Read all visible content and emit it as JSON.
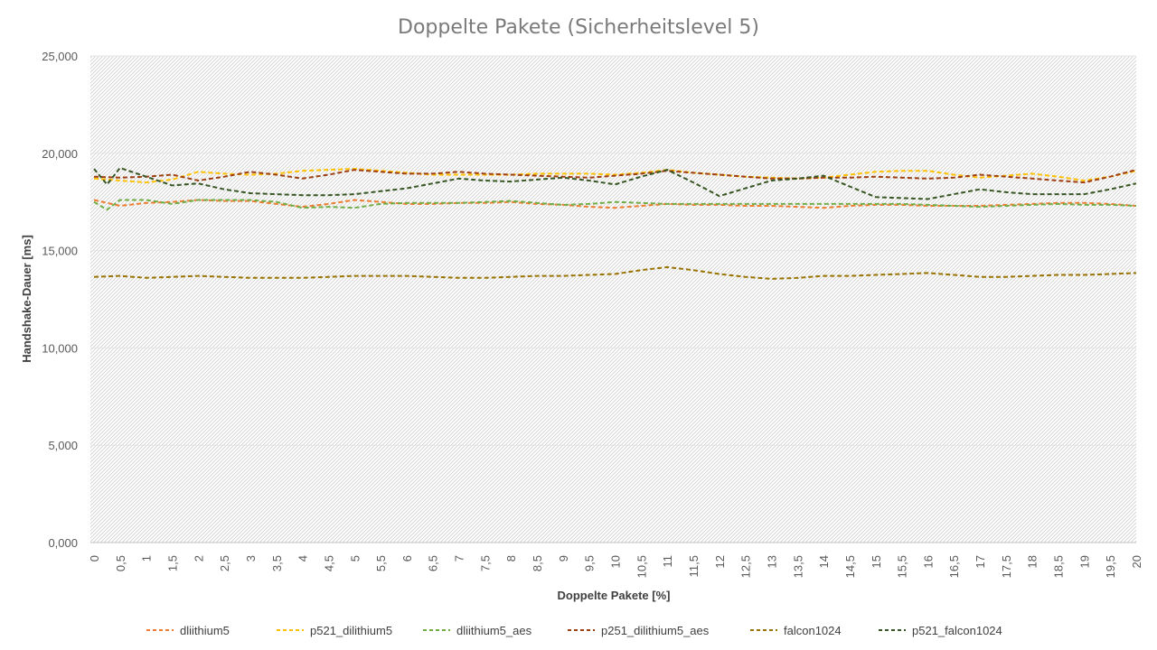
{
  "chart_data": {
    "type": "line",
    "title": "Doppelte Pakete (Sicherheitslevel 5)",
    "xlabel": "Doppelte Pakete [%]",
    "ylabel": "Handshake-Dauer [ms]",
    "ylim": [
      0,
      25000
    ],
    "xlim": [
      0,
      20
    ],
    "yticks": [
      "0,000",
      "5,000",
      "10,000",
      "15,000",
      "20,000",
      "25,000"
    ],
    "categories": [
      "0",
      "0,5",
      "1",
      "1,5",
      "2",
      "2,5",
      "3",
      "3,5",
      "4",
      "4,5",
      "5",
      "5,5",
      "6",
      "6,5",
      "7",
      "7,5",
      "8",
      "8,5",
      "9",
      "9,5",
      "10",
      "10,5",
      "11",
      "11,5",
      "12",
      "12,5",
      "13",
      "13,5",
      "14",
      "14,5",
      "15",
      "15,5",
      "16",
      "16,5",
      "17",
      "17,5",
      "18",
      "18,5",
      "19",
      "19,5",
      "20"
    ],
    "grid": "hatched plot area",
    "legend_position": "bottom",
    "line_style": "dashed",
    "series": [
      {
        "name": "dliithium5",
        "color": "#ed7d31",
        "x": [
          0,
          0.5,
          1,
          1.5,
          2,
          2.5,
          3,
          3.5,
          4,
          4.5,
          5,
          5.5,
          6,
          6.5,
          7,
          7.5,
          8,
          8.5,
          9,
          9.5,
          10,
          10.5,
          11,
          11.5,
          12,
          12.5,
          13,
          13.5,
          14,
          14.5,
          15,
          15.5,
          16,
          16.5,
          17,
          17.5,
          18,
          18.5,
          19,
          19.5,
          20
        ],
        "y": [
          17600,
          17300,
          17450,
          17500,
          17600,
          17550,
          17550,
          17400,
          17250,
          17400,
          17600,
          17500,
          17400,
          17400,
          17450,
          17450,
          17500,
          17400,
          17350,
          17250,
          17200,
          17300,
          17400,
          17350,
          17350,
          17300,
          17300,
          17250,
          17200,
          17300,
          17350,
          17350,
          17300,
          17300,
          17300,
          17350,
          17400,
          17450,
          17450,
          17400,
          17300
        ]
      },
      {
        "name": "p521_dilithium5",
        "color": "#ffc000",
        "x": [
          0,
          0.5,
          1,
          1.5,
          2,
          2.5,
          3,
          3.5,
          4,
          4.5,
          5,
          5.5,
          6,
          6.5,
          7,
          7.5,
          8,
          8.5,
          9,
          9.5,
          10,
          10.5,
          11,
          11.5,
          12,
          12.5,
          13,
          13.5,
          14,
          14.5,
          15,
          15.5,
          16,
          16.5,
          17,
          17.5,
          18,
          18.5,
          19,
          19.5,
          20
        ],
        "y": [
          18700,
          18600,
          18500,
          18650,
          19050,
          18950,
          18900,
          18950,
          19100,
          19150,
          19200,
          19100,
          19000,
          18900,
          18900,
          18900,
          18900,
          18950,
          18950,
          18950,
          18900,
          19000,
          19150,
          19000,
          18900,
          18800,
          18750,
          18700,
          18750,
          18900,
          19050,
          19100,
          19100,
          18900,
          18750,
          18850,
          18950,
          18800,
          18600,
          18800,
          19100
        ]
      },
      {
        "name": "dliithium5_aes",
        "color": "#70ad47",
        "x": [
          0,
          0.25,
          0.5,
          1,
          1.5,
          2,
          2.5,
          3,
          3.5,
          4,
          4.5,
          5,
          5.5,
          6,
          6.5,
          7,
          7.5,
          8,
          8.5,
          9,
          9.5,
          10,
          10.5,
          11,
          11.5,
          12,
          12.5,
          13,
          13.5,
          14,
          14.5,
          15,
          15.5,
          16,
          16.5,
          17,
          17.5,
          18,
          18.5,
          19,
          19.5,
          20
        ],
        "y": [
          17500,
          17100,
          17600,
          17600,
          17400,
          17600,
          17600,
          17600,
          17500,
          17200,
          17250,
          17200,
          17400,
          17450,
          17450,
          17450,
          17500,
          17550,
          17450,
          17350,
          17400,
          17500,
          17450,
          17400,
          17400,
          17400,
          17400,
          17400,
          17400,
          17400,
          17400,
          17400,
          17400,
          17350,
          17300,
          17250,
          17300,
          17350,
          17400,
          17350,
          17350,
          17300
        ]
      },
      {
        "name": "p251_dilithium5_aes",
        "color": "#9e3f13",
        "x": [
          0,
          0.5,
          1,
          1.5,
          2,
          2.5,
          3,
          3.5,
          4,
          4.5,
          5,
          5.5,
          6,
          6.5,
          7,
          7.5,
          8,
          8.5,
          9,
          9.5,
          10,
          10.5,
          11,
          11.5,
          12,
          12.5,
          13,
          13.5,
          14,
          14.5,
          15,
          15.5,
          16,
          16.5,
          17,
          17.5,
          18,
          18.5,
          19,
          19.5,
          20
        ],
        "y": [
          18800,
          18750,
          18800,
          18900,
          18600,
          18800,
          19050,
          18900,
          18700,
          18900,
          19150,
          19050,
          18950,
          18950,
          19050,
          18950,
          18900,
          18850,
          18800,
          18750,
          18850,
          18950,
          19100,
          19000,
          18900,
          18800,
          18700,
          18700,
          18750,
          18750,
          18800,
          18750,
          18700,
          18750,
          18900,
          18800,
          18700,
          18600,
          18500,
          18800,
          19150
        ]
      },
      {
        "name": "falcon1024",
        "color": "#997300",
        "x": [
          0,
          0.5,
          1,
          1.5,
          2,
          2.5,
          3,
          3.5,
          4,
          4.5,
          5,
          5.5,
          6,
          6.5,
          7,
          7.5,
          8,
          8.5,
          9,
          9.5,
          10,
          10.5,
          11,
          11.5,
          12,
          12.5,
          13,
          13.5,
          14,
          14.5,
          15,
          15.5,
          16,
          16.5,
          17,
          17.5,
          18,
          18.5,
          19,
          19.5,
          20
        ],
        "y": [
          13650,
          13700,
          13600,
          13650,
          13700,
          13650,
          13600,
          13600,
          13600,
          13650,
          13700,
          13700,
          13700,
          13650,
          13600,
          13600,
          13650,
          13700,
          13700,
          13750,
          13800,
          14000,
          14150,
          14000,
          13800,
          13650,
          13550,
          13600,
          13700,
          13700,
          13750,
          13800,
          13850,
          13750,
          13650,
          13650,
          13700,
          13750,
          13750,
          13800,
          13850
        ]
      },
      {
        "name": "p521_falcon1024",
        "color": "#375623",
        "x": [
          0,
          0.25,
          0.5,
          1,
          1.5,
          2,
          2.5,
          3,
          3.5,
          4,
          4.5,
          5,
          5.5,
          6,
          6.5,
          7,
          7.5,
          8,
          8.5,
          9,
          9.5,
          10,
          10.5,
          11,
          11.5,
          12,
          12.5,
          13,
          13.5,
          14,
          14.5,
          15,
          15.5,
          16,
          16.5,
          17,
          17.5,
          18,
          18.5,
          19,
          19.5,
          20
        ],
        "y": [
          19200,
          18400,
          19250,
          18800,
          18350,
          18450,
          18150,
          17950,
          17900,
          17850,
          17850,
          17900,
          18050,
          18200,
          18450,
          18700,
          18600,
          18550,
          18650,
          18750,
          18600,
          18400,
          18800,
          19150,
          18500,
          17800,
          18200,
          18600,
          18700,
          18850,
          18300,
          17750,
          17700,
          17650,
          17900,
          18150,
          18000,
          17900,
          17900,
          17900,
          18150,
          18450
        ]
      }
    ]
  }
}
